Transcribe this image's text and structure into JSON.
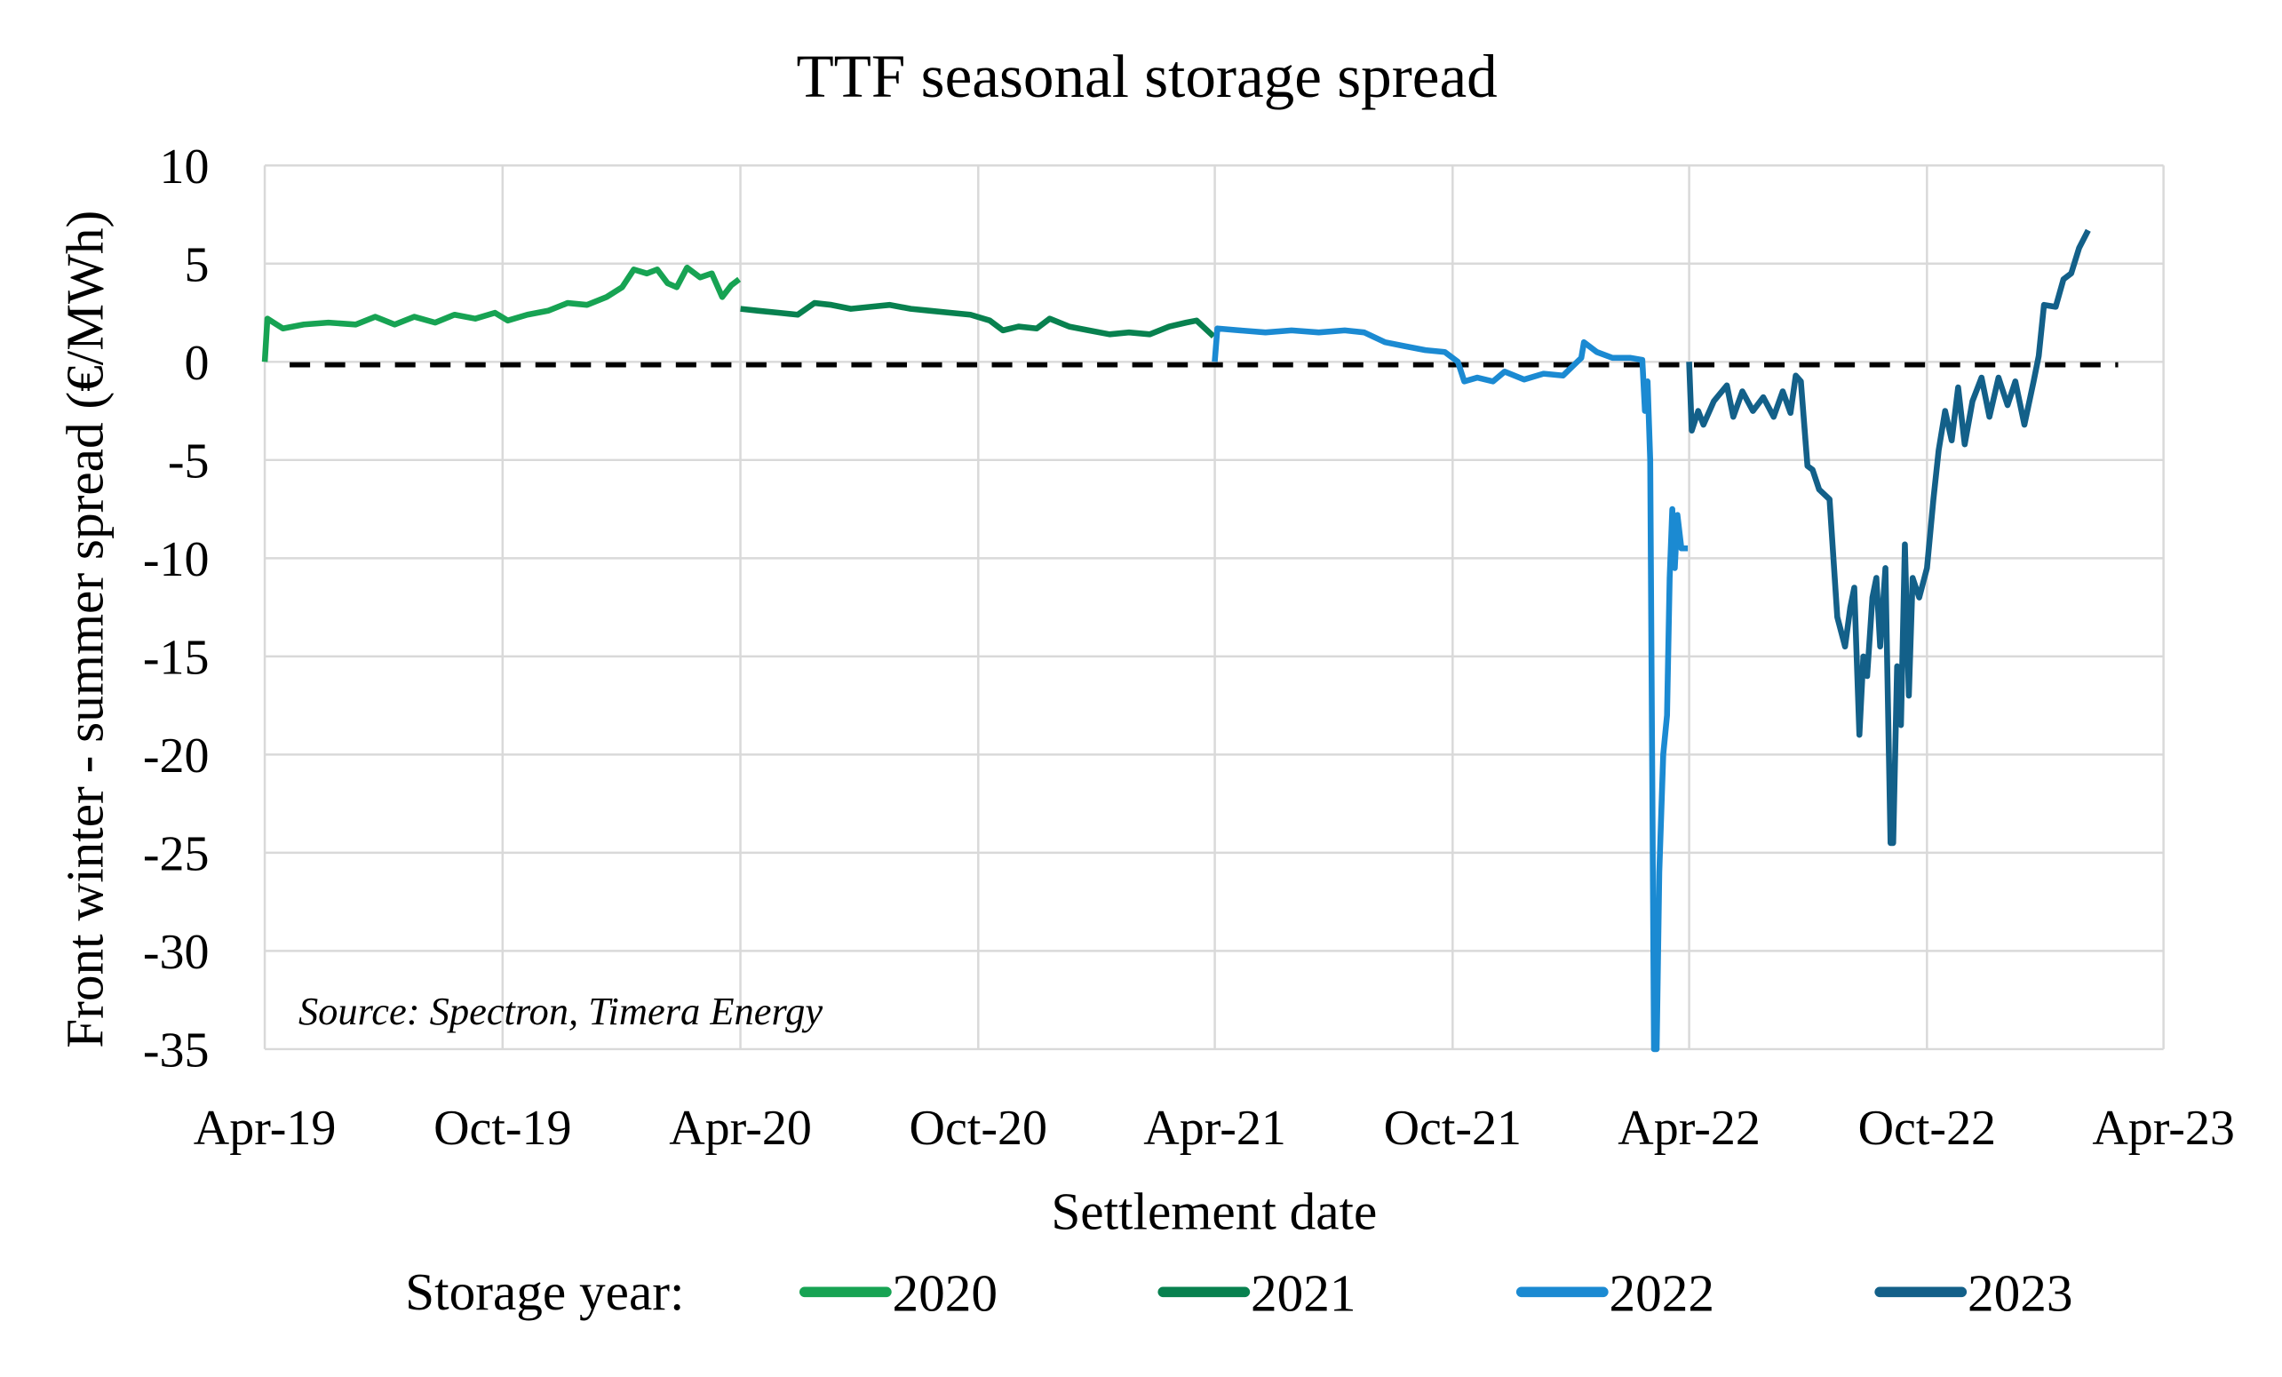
{
  "chart_data": {
    "type": "line",
    "title": "TTF seasonal storage spread",
    "xlabel": "Settlement date",
    "ylabel": "Front winter - summer spread (€/MWh)",
    "annotation": "Source: Spectron, Timera Energy",
    "legend_title": "Storage year:",
    "legend_placement": "bottom",
    "grid": true,
    "ylim": [
      -35,
      10
    ],
    "yticks": [
      10,
      5,
      0,
      -5,
      -10,
      -15,
      -20,
      -25,
      -30,
      -35
    ],
    "xlim": [
      "2019-04-01",
      "2023-04-01"
    ],
    "xticks": [
      {
        "date": "2019-04-01",
        "label": "Apr-19"
      },
      {
        "date": "2019-10-01",
        "label": "Oct-19"
      },
      {
        "date": "2020-04-01",
        "label": "Apr-20"
      },
      {
        "date": "2020-10-01",
        "label": "Oct-20"
      },
      {
        "date": "2021-04-01",
        "label": "Apr-21"
      },
      {
        "date": "2021-10-01",
        "label": "Oct-21"
      },
      {
        "date": "2022-04-01",
        "label": "Apr-22"
      },
      {
        "date": "2022-10-01",
        "label": "Oct-22"
      },
      {
        "date": "2023-04-01",
        "label": "Apr-23"
      }
    ],
    "reference_line": {
      "y": 0,
      "style": "dashed",
      "color": "#000000"
    },
    "series": [
      {
        "name": "2020",
        "color": "#17a353",
        "points": [
          [
            "2019-04-01",
            0
          ],
          [
            "2019-04-03",
            2.2
          ],
          [
            "2019-04-15",
            1.7
          ],
          [
            "2019-05-01",
            1.9
          ],
          [
            "2019-05-20",
            2.0
          ],
          [
            "2019-06-10",
            1.9
          ],
          [
            "2019-06-25",
            2.3
          ],
          [
            "2019-07-10",
            1.9
          ],
          [
            "2019-07-25",
            2.3
          ],
          [
            "2019-08-10",
            2.0
          ],
          [
            "2019-08-25",
            2.4
          ],
          [
            "2019-09-10",
            2.2
          ],
          [
            "2019-09-25",
            2.5
          ],
          [
            "2019-10-05",
            2.1
          ],
          [
            "2019-10-20",
            2.4
          ],
          [
            "2019-11-05",
            2.6
          ],
          [
            "2019-11-20",
            3.0
          ],
          [
            "2019-12-05",
            2.9
          ],
          [
            "2019-12-20",
            3.3
          ],
          [
            "2020-01-01",
            3.8
          ],
          [
            "2020-01-10",
            4.7
          ],
          [
            "2020-01-20",
            4.5
          ],
          [
            "2020-01-28",
            4.7
          ],
          [
            "2020-02-05",
            4.0
          ],
          [
            "2020-02-12",
            3.8
          ],
          [
            "2020-02-20",
            4.8
          ],
          [
            "2020-03-01",
            4.3
          ],
          [
            "2020-03-10",
            4.5
          ],
          [
            "2020-03-18",
            3.3
          ],
          [
            "2020-03-25",
            3.9
          ],
          [
            "2020-03-31",
            4.2
          ]
        ]
      },
      {
        "name": "2021",
        "color": "#08814f",
        "points": [
          [
            "2020-04-01",
            2.7
          ],
          [
            "2020-04-15",
            2.6
          ],
          [
            "2020-05-01",
            2.5
          ],
          [
            "2020-05-15",
            2.4
          ],
          [
            "2020-05-28",
            3.0
          ],
          [
            "2020-06-10",
            2.9
          ],
          [
            "2020-06-25",
            2.7
          ],
          [
            "2020-07-10",
            2.8
          ],
          [
            "2020-07-25",
            2.9
          ],
          [
            "2020-08-10",
            2.7
          ],
          [
            "2020-08-25",
            2.6
          ],
          [
            "2020-09-10",
            2.5
          ],
          [
            "2020-09-25",
            2.4
          ],
          [
            "2020-10-10",
            2.1
          ],
          [
            "2020-10-20",
            1.6
          ],
          [
            "2020-11-01",
            1.8
          ],
          [
            "2020-11-15",
            1.7
          ],
          [
            "2020-11-25",
            2.2
          ],
          [
            "2020-12-10",
            1.8
          ],
          [
            "2020-12-25",
            1.6
          ],
          [
            "2021-01-10",
            1.4
          ],
          [
            "2021-01-25",
            1.5
          ],
          [
            "2021-02-10",
            1.4
          ],
          [
            "2021-02-25",
            1.8
          ],
          [
            "2021-03-10",
            2.0
          ],
          [
            "2021-03-18",
            2.1
          ],
          [
            "2021-03-31",
            1.3
          ]
        ]
      },
      {
        "name": "2022",
        "color": "#1b8ad2",
        "points": [
          [
            "2021-04-01",
            0
          ],
          [
            "2021-04-03",
            1.7
          ],
          [
            "2021-04-20",
            1.6
          ],
          [
            "2021-05-10",
            1.5
          ],
          [
            "2021-05-30",
            1.6
          ],
          [
            "2021-06-20",
            1.5
          ],
          [
            "2021-07-10",
            1.6
          ],
          [
            "2021-07-25",
            1.5
          ],
          [
            "2021-08-10",
            1.0
          ],
          [
            "2021-08-25",
            0.8
          ],
          [
            "2021-09-10",
            0.6
          ],
          [
            "2021-09-25",
            0.5
          ],
          [
            "2021-10-05",
            0.0
          ],
          [
            "2021-10-10",
            -1.0
          ],
          [
            "2021-10-20",
            -0.8
          ],
          [
            "2021-11-01",
            -1.0
          ],
          [
            "2021-11-10",
            -0.5
          ],
          [
            "2021-11-25",
            -0.9
          ],
          [
            "2021-12-10",
            -0.6
          ],
          [
            "2021-12-25",
            -0.7
          ],
          [
            "2022-01-08",
            0.2
          ],
          [
            "2022-01-10",
            1.0
          ],
          [
            "2022-01-20",
            0.5
          ],
          [
            "2022-02-01",
            0.2
          ],
          [
            "2022-02-15",
            0.2
          ],
          [
            "2022-02-24",
            0.1
          ],
          [
            "2022-02-26",
            -2.5
          ],
          [
            "2022-02-28",
            -1.0
          ],
          [
            "2022-03-02",
            -5
          ],
          [
            "2022-03-05",
            -35
          ],
          [
            "2022-03-07",
            -35
          ],
          [
            "2022-03-09",
            -26
          ],
          [
            "2022-03-12",
            -20
          ],
          [
            "2022-03-15",
            -18
          ],
          [
            "2022-03-17",
            -11
          ],
          [
            "2022-03-19",
            -7.5
          ],
          [
            "2022-03-21",
            -10.5
          ],
          [
            "2022-03-23",
            -7.8
          ],
          [
            "2022-03-26",
            -9.5
          ],
          [
            "2022-03-31",
            -9.5
          ]
        ]
      },
      {
        "name": "2023",
        "color": "#136089",
        "points": [
          [
            "2022-04-01",
            0
          ],
          [
            "2022-04-03",
            -3.5
          ],
          [
            "2022-04-08",
            -2.5
          ],
          [
            "2022-04-12",
            -3.2
          ],
          [
            "2022-04-20",
            -2.0
          ],
          [
            "2022-04-30",
            -1.2
          ],
          [
            "2022-05-05",
            -2.8
          ],
          [
            "2022-05-12",
            -1.5
          ],
          [
            "2022-05-20",
            -2.5
          ],
          [
            "2022-05-28",
            -1.8
          ],
          [
            "2022-06-05",
            -2.8
          ],
          [
            "2022-06-12",
            -1.5
          ],
          [
            "2022-06-18",
            -2.6
          ],
          [
            "2022-06-22",
            -0.7
          ],
          [
            "2022-06-26",
            -1.0
          ],
          [
            "2022-07-01",
            -5.3
          ],
          [
            "2022-07-05",
            -5.5
          ],
          [
            "2022-07-10",
            -6.5
          ],
          [
            "2022-07-18",
            -7.0
          ],
          [
            "2022-07-24",
            -13
          ],
          [
            "2022-07-30",
            -14.5
          ],
          [
            "2022-08-03",
            -12.5
          ],
          [
            "2022-08-06",
            -11.5
          ],
          [
            "2022-08-10",
            -19
          ],
          [
            "2022-08-13",
            -15
          ],
          [
            "2022-08-16",
            -16
          ],
          [
            "2022-08-20",
            -12
          ],
          [
            "2022-08-23",
            -11
          ],
          [
            "2022-08-26",
            -14.5
          ],
          [
            "2022-08-30",
            -10.5
          ],
          [
            "2022-09-03",
            -24.5
          ],
          [
            "2022-09-05",
            -24.5
          ],
          [
            "2022-09-08",
            -15.5
          ],
          [
            "2022-09-11",
            -18.5
          ],
          [
            "2022-09-14",
            -9.3
          ],
          [
            "2022-09-17",
            -17
          ],
          [
            "2022-09-20",
            -11
          ],
          [
            "2022-09-25",
            -12
          ],
          [
            "2022-10-01",
            -10.5
          ],
          [
            "2022-10-06",
            -7
          ],
          [
            "2022-10-10",
            -4.5
          ],
          [
            "2022-10-15",
            -2.5
          ],
          [
            "2022-10-20",
            -4.0
          ],
          [
            "2022-10-25",
            -1.3
          ],
          [
            "2022-10-30",
            -4.2
          ],
          [
            "2022-11-05",
            -2.0
          ],
          [
            "2022-11-12",
            -0.8
          ],
          [
            "2022-11-18",
            -2.8
          ],
          [
            "2022-11-25",
            -0.8
          ],
          [
            "2022-12-02",
            -2.2
          ],
          [
            "2022-12-08",
            -1.0
          ],
          [
            "2022-12-15",
            -3.2
          ],
          [
            "2022-12-22",
            -1.0
          ],
          [
            "2022-12-26",
            0.3
          ],
          [
            "2022-12-30",
            2.9
          ],
          [
            "2023-01-08",
            2.8
          ],
          [
            "2023-01-14",
            4.2
          ],
          [
            "2023-01-20",
            4.5
          ],
          [
            "2023-01-26",
            5.8
          ],
          [
            "2023-02-02",
            6.7
          ]
        ]
      }
    ]
  }
}
